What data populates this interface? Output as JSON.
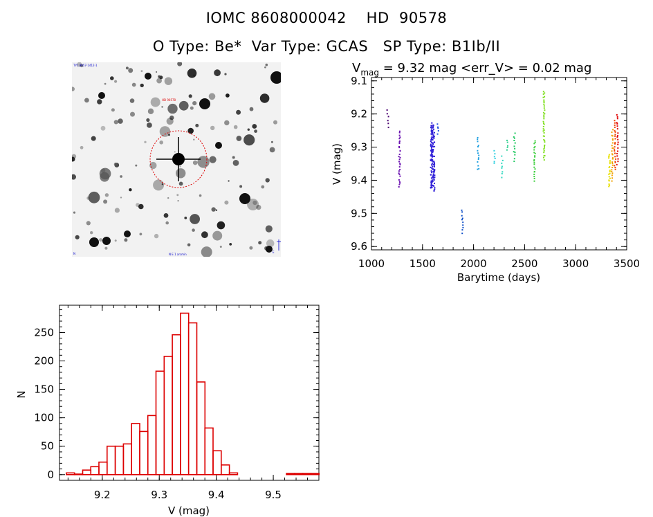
{
  "header": {
    "title_line1": "IOMC 8608000042    HD  90578",
    "title_line2": "O Type: Be*  Var Type: GCAS   SP Type: B1Ib/II"
  },
  "finder_image": {
    "label_top_left": "TYC 8957-1412-1",
    "label_target": "HD 90578",
    "label_bottom_center": "N   E   1 arcmin",
    "label_bottom_left": "N",
    "label_bottom_right": "E"
  },
  "chart_data": [
    {
      "type": "scatter",
      "title": "V_mag = 9.32 mag <err_V> = 0.02 mag",
      "title_parts": {
        "main": "V",
        "sub": "mag",
        "rest": " = 9.32 mag <err_V> = 0.02 mag"
      },
      "xlabel": "Barytime (days)",
      "ylabel": "V (mag)",
      "xlim": [
        1000,
        3500
      ],
      "ylim": [
        9.61,
        9.09
      ],
      "y_inverted": true,
      "xticks": [
        1000,
        1500,
        2000,
        2500,
        3000,
        3500
      ],
      "yticks": [
        9.1,
        9.2,
        9.3,
        9.4,
        9.5,
        9.6
      ],
      "ytick_labels": [
        "9.1",
        "9.2",
        "9.3",
        "9.4",
        "9.5",
        "9.6"
      ],
      "groups": [
        {
          "x": 1160,
          "ymin": 9.19,
          "ymax": 9.24,
          "color": "#4a0070",
          "n": 6
        },
        {
          "x": 1275,
          "ymin": 9.25,
          "ymax": 9.42,
          "color": "#6a10b0",
          "n": 30
        },
        {
          "x": 1600,
          "ymin": 9.23,
          "ymax": 9.43,
          "color": "#3020d8",
          "n": 140
        },
        {
          "x": 1650,
          "ymin": 9.23,
          "ymax": 9.26,
          "color": "#2050e0",
          "n": 5
        },
        {
          "x": 1890,
          "ymin": 9.49,
          "ymax": 9.56,
          "color": "#1050c8",
          "n": 10
        },
        {
          "x": 2045,
          "ymin": 9.27,
          "ymax": 9.37,
          "color": "#20a0e0",
          "n": 14
        },
        {
          "x": 2205,
          "ymin": 9.31,
          "ymax": 9.35,
          "color": "#30d0e0",
          "n": 6
        },
        {
          "x": 2280,
          "ymin": 9.33,
          "ymax": 9.39,
          "color": "#30d8c0",
          "n": 8
        },
        {
          "x": 2330,
          "ymin": 9.28,
          "ymax": 9.31,
          "color": "#30d090",
          "n": 5
        },
        {
          "x": 2400,
          "ymin": 9.26,
          "ymax": 9.34,
          "color": "#20c860",
          "n": 12
        },
        {
          "x": 2600,
          "ymin": 9.28,
          "ymax": 9.4,
          "color": "#40d040",
          "n": 22
        },
        {
          "x": 2690,
          "ymin": 9.13,
          "ymax": 9.34,
          "color": "#80e020",
          "n": 40
        },
        {
          "x": 3330,
          "ymin": 9.32,
          "ymax": 9.42,
          "color": "#e8e000",
          "n": 20
        },
        {
          "x": 3360,
          "ymin": 9.25,
          "ymax": 9.4,
          "color": "#f0a000",
          "n": 25
        },
        {
          "x": 3385,
          "ymin": 9.22,
          "ymax": 9.37,
          "color": "#f04000",
          "n": 22
        },
        {
          "x": 3410,
          "ymin": 9.2,
          "ymax": 9.35,
          "color": "#e00000",
          "n": 20
        }
      ]
    },
    {
      "type": "bar",
      "subtype": "histogram",
      "xlabel": "V (mag)",
      "ylabel": "N",
      "xlim": [
        9.125,
        9.58
      ],
      "ylim": [
        -10,
        298
      ],
      "xticks": [
        9.2,
        9.3,
        9.4,
        9.5
      ],
      "xtick_labels": [
        "9.2",
        "9.3",
        "9.4",
        "9.5"
      ],
      "yticks": [
        0,
        50,
        100,
        150,
        200,
        250
      ],
      "ytick_labels": [
        "0",
        "50",
        "100",
        "150",
        "200",
        "250"
      ],
      "bin_width": 0.0143,
      "bin_start": 9.137,
      "values": [
        3,
        1,
        8,
        14,
        22,
        50,
        50,
        54,
        90,
        76,
        104,
        182,
        208,
        246,
        284,
        267,
        163,
        82,
        42,
        17,
        3,
        0,
        0,
        0,
        0,
        0,
        0,
        2,
        2,
        2,
        2
      ],
      "color": "#dd0000"
    }
  ]
}
